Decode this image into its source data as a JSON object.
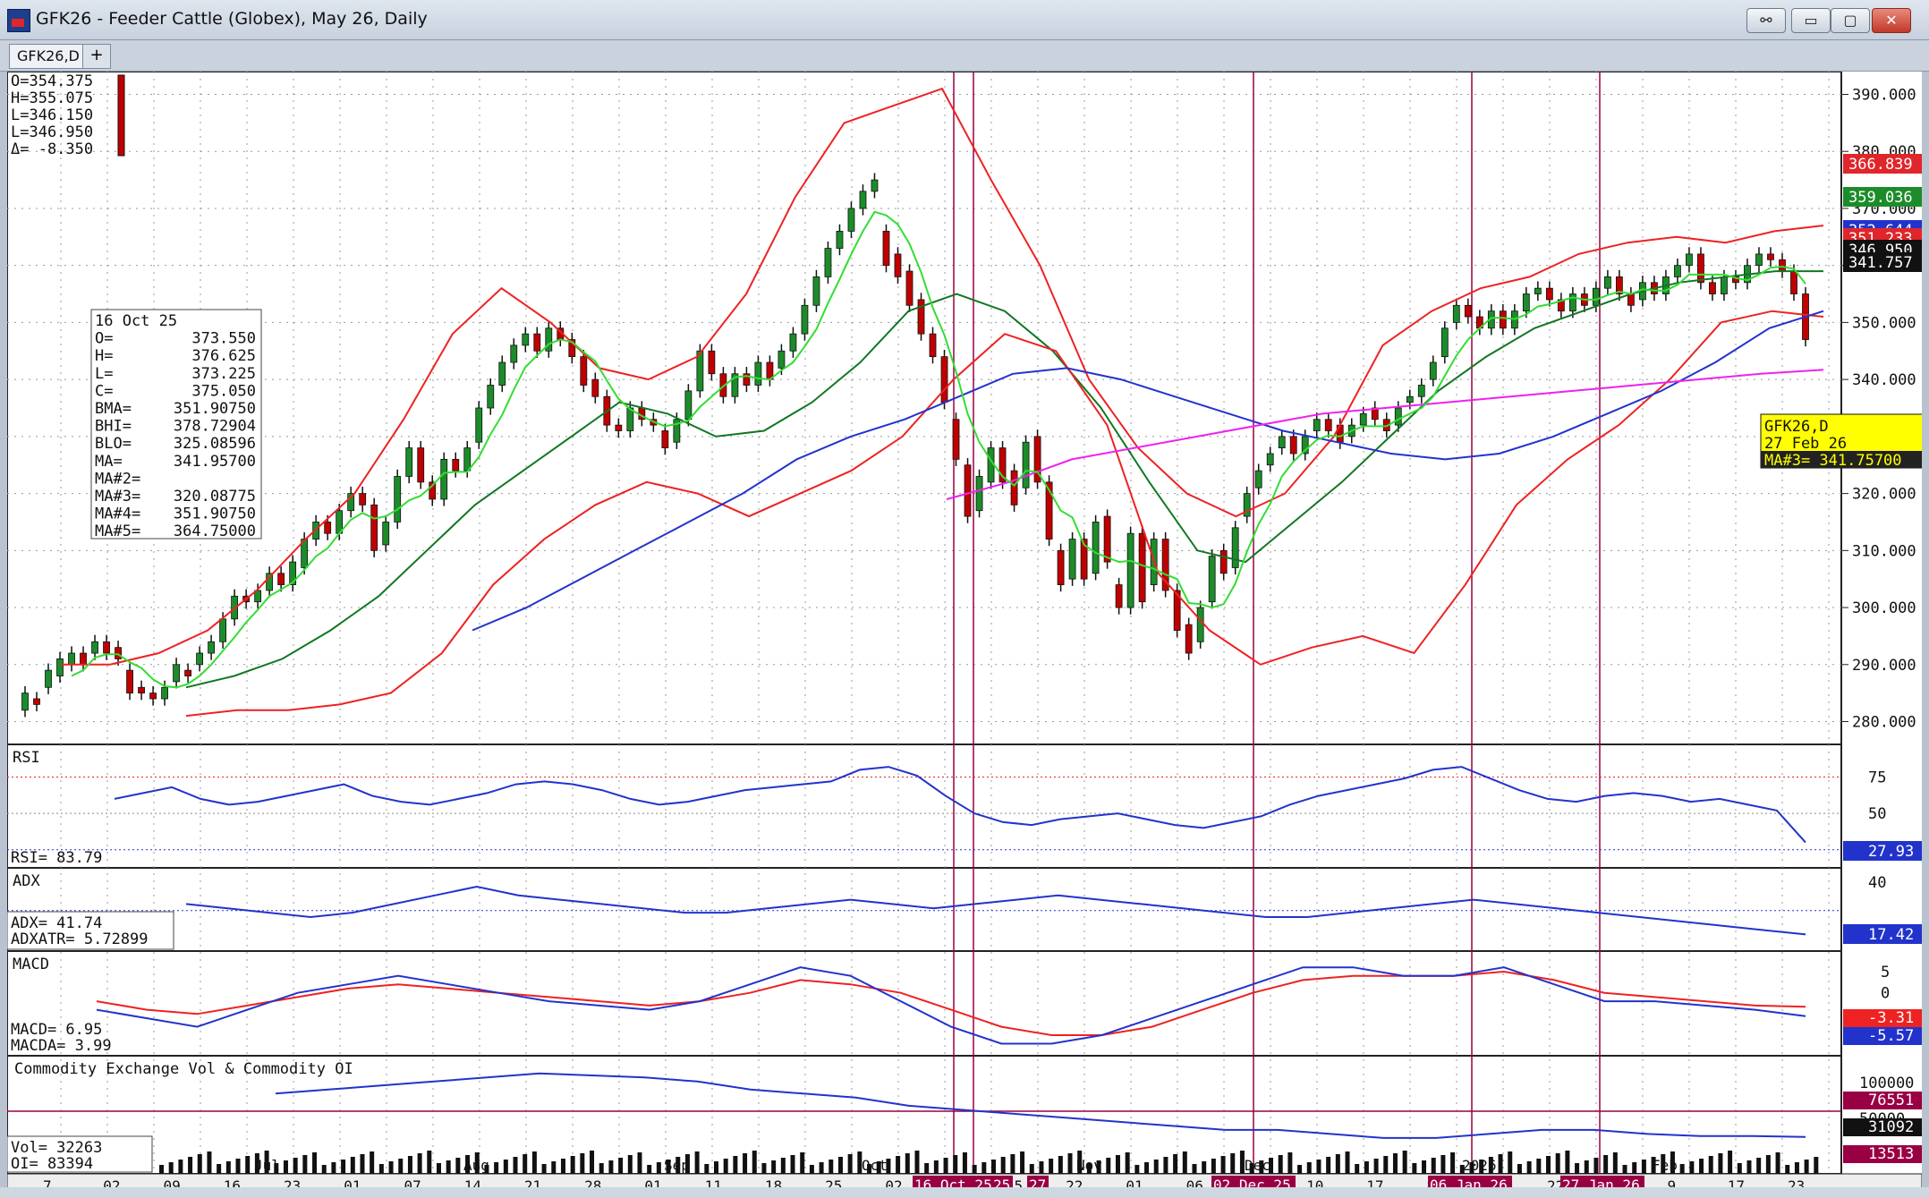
{
  "window": {
    "title": "GFK26 - Feeder Cattle (Globex), May 26, Daily",
    "tab_label": "GFK26,D",
    "tab_add": "+",
    "buttons": {
      "link": "⚯",
      "minimize": "▭",
      "maximize": "▢",
      "close": "✕"
    }
  },
  "chart_data": {
    "type": "line",
    "symbol": "GFK26,D",
    "date_label": "27 Feb 26",
    "price_axis": {
      "ylim": [
        276,
        394
      ],
      "ticks": [
        "390.000",
        "380.000",
        "370.000",
        "360.000",
        "350.000",
        "340.000",
        "330.000",
        "320.000",
        "310.000",
        "300.000",
        "290.000",
        "280.000"
      ]
    },
    "ohlc_box": {
      "O": "354.375",
      "H": "355.075",
      "L": "346.150",
      "L2": "346.950",
      "delta": "-8.350"
    },
    "cursor_box": [
      {
        "label": "16 Oct 25",
        "value": ""
      },
      {
        "label": "O=",
        "value": "373.550"
      },
      {
        "label": "H=",
        "value": "376.625"
      },
      {
        "label": "L=",
        "value": "373.225"
      },
      {
        "label": "C=",
        "value": "375.050"
      },
      {
        "label": "BMA=",
        "value": "351.90750"
      },
      {
        "label": "BHI=",
        "value": "378.72904"
      },
      {
        "label": "BLO=",
        "value": "325.08596"
      },
      {
        "label": "MA=",
        "value": "341.95700"
      },
      {
        "label": "MA#2=",
        "value": ""
      },
      {
        "label": "MA#3=",
        "value": "320.08775"
      },
      {
        "label": "MA#4=",
        "value": "351.90750"
      },
      {
        "label": "MA#5=",
        "value": "364.75000"
      }
    ],
    "info_box": {
      "line1": "GFK26,D",
      "line2": "27 Feb 26",
      "line3": "MA#3= 341.75700"
    },
    "value_tags": [
      {
        "value": "366.839",
        "color": "#e0262a"
      },
      {
        "value": "359.036",
        "color": "#1c8c2a"
      },
      {
        "value": "352.644",
        "color": "#2233cc"
      },
      {
        "value": "351.233",
        "color": "#e0262a"
      },
      {
        "value": "346.950",
        "color": "#111111"
      },
      {
        "value": "341.757",
        "color": "#111111"
      }
    ],
    "colors": {
      "up": "#1c8c2a",
      "down": "#c00000",
      "band": "#ee2222",
      "ma_fast": "#33dd33",
      "ma_mid": "#117722",
      "ma_slow": "#2233cc",
      "ma_long": "#ee22ee",
      "marker": "#990044"
    },
    "x_labels": [
      "7",
      "02",
      "09",
      "16",
      "23",
      "01",
      "07",
      "14",
      "21",
      "28",
      "01",
      "11",
      "18",
      "25",
      "02",
      "08",
      "15",
      "22",
      "01",
      "06",
      "03",
      "10",
      "17",
      "8",
      "15",
      "22",
      "2",
      "9",
      "17",
      "23"
    ],
    "month_labels": [
      "Jul",
      "Aug",
      "Sep",
      "Oct",
      "Nov",
      "Dec",
      "2026",
      "Feb"
    ],
    "marker_labels": [
      "16 Oct 25",
      "25",
      "27",
      "02 Dec 25",
      "06 Jan 26",
      "27 Jan 26"
    ],
    "candles": [
      [
        282,
        285
      ],
      [
        284,
        283
      ],
      [
        286,
        289
      ],
      [
        288,
        291
      ],
      [
        290,
        292
      ],
      [
        292,
        290
      ],
      [
        292,
        294
      ],
      [
        294,
        292
      ],
      [
        293,
        291
      ],
      [
        289,
        285
      ],
      [
        286,
        285
      ],
      [
        285,
        284
      ],
      [
        284,
        286
      ],
      [
        287,
        290
      ],
      [
        289,
        288
      ],
      [
        290,
        292
      ],
      [
        292,
        294
      ],
      [
        294,
        298
      ],
      [
        298,
        302
      ],
      [
        302,
        301
      ],
      [
        301,
        303
      ],
      [
        303,
        306
      ],
      [
        306,
        304
      ],
      [
        304,
        308
      ],
      [
        307,
        312
      ],
      [
        312,
        315
      ],
      [
        315,
        313
      ],
      [
        313,
        317
      ],
      [
        317,
        320
      ],
      [
        320,
        318
      ],
      [
        318,
        310
      ],
      [
        311,
        315
      ],
      [
        315,
        323
      ],
      [
        323,
        328
      ],
      [
        328,
        322
      ],
      [
        322,
        319
      ],
      [
        319,
        326
      ],
      [
        326,
        324
      ],
      [
        324,
        328
      ],
      [
        329,
        335
      ],
      [
        335,
        339
      ],
      [
        339,
        343
      ],
      [
        343,
        346
      ],
      [
        346,
        348
      ],
      [
        348,
        345
      ],
      [
        345,
        349
      ],
      [
        349,
        347
      ],
      [
        347,
        344
      ],
      [
        344,
        339
      ],
      [
        340,
        337
      ],
      [
        337,
        332
      ],
      [
        332,
        331
      ],
      [
        331,
        335
      ],
      [
        335,
        333
      ],
      [
        333,
        332
      ],
      [
        331,
        328
      ],
      [
        329,
        333
      ],
      [
        333,
        338
      ],
      [
        338,
        345
      ],
      [
        345,
        341
      ],
      [
        341,
        337
      ],
      [
        337,
        341
      ],
      [
        341,
        339
      ],
      [
        339,
        343
      ],
      [
        343,
        340
      ],
      [
        342,
        345
      ],
      [
        345,
        348
      ],
      [
        348,
        353
      ],
      [
        353,
        358
      ],
      [
        358,
        363
      ],
      [
        363,
        366
      ],
      [
        366,
        370
      ],
      [
        370,
        373
      ],
      [
        373,
        375
      ],
      [
        366,
        360
      ],
      [
        362,
        358
      ],
      [
        359,
        353
      ],
      [
        354,
        348
      ],
      [
        348,
        344
      ],
      [
        344,
        336
      ],
      [
        333,
        326
      ],
      [
        325,
        316
      ],
      [
        317,
        323
      ],
      [
        322,
        328
      ],
      [
        328,
        322
      ],
      [
        324,
        318
      ],
      [
        321,
        329
      ],
      [
        330,
        322
      ],
      [
        322,
        312
      ],
      [
        310,
        304
      ],
      [
        305,
        312
      ],
      [
        312,
        305
      ],
      [
        306,
        315
      ],
      [
        316,
        308
      ],
      [
        304,
        300
      ],
      [
        300,
        313
      ],
      [
        313,
        301
      ],
      [
        304,
        312
      ],
      [
        312,
        303
      ],
      [
        303,
        296
      ],
      [
        297,
        292
      ],
      [
        294,
        300
      ],
      [
        301,
        309
      ],
      [
        310,
        306
      ],
      [
        307,
        314
      ],
      [
        316,
        320
      ],
      [
        321,
        324
      ],
      [
        325,
        327
      ],
      [
        328,
        330
      ],
      [
        330,
        327
      ],
      [
        327,
        330
      ],
      [
        331,
        333
      ],
      [
        333,
        331
      ],
      [
        332,
        329
      ],
      [
        330,
        332
      ],
      [
        332,
        334
      ],
      [
        335,
        333
      ],
      [
        333,
        331
      ],
      [
        332,
        335
      ],
      [
        336,
        337
      ],
      [
        337,
        339
      ],
      [
        340,
        343
      ],
      [
        344,
        349
      ],
      [
        350,
        353
      ],
      [
        353,
        351
      ],
      [
        351,
        349
      ],
      [
        349,
        352
      ],
      [
        352,
        349
      ],
      [
        349,
        352
      ],
      [
        352,
        355
      ],
      [
        355,
        356
      ],
      [
        356,
        354
      ],
      [
        354,
        352
      ],
      [
        352,
        355
      ],
      [
        355,
        353
      ],
      [
        353,
        356
      ],
      [
        356,
        358
      ],
      [
        358,
        355
      ],
      [
        355,
        353
      ],
      [
        354,
        357
      ],
      [
        357,
        355
      ],
      [
        355,
        358
      ],
      [
        358,
        360
      ],
      [
        360,
        362
      ],
      [
        362,
        357
      ],
      [
        357,
        355
      ],
      [
        355,
        358
      ],
      [
        358,
        357
      ],
      [
        357,
        360
      ],
      [
        360,
        362
      ],
      [
        362,
        361
      ],
      [
        361,
        359
      ],
      [
        359,
        355
      ],
      [
        355,
        347
      ]
    ],
    "series": [
      {
        "name": "BHI",
        "values": [
          290,
          290,
          292,
          296,
          303,
          312,
          320,
          333,
          348,
          356,
          350,
          342,
          340,
          344,
          355,
          372,
          385,
          388,
          391,
          375,
          360,
          340,
          328,
          320,
          316,
          320,
          330,
          346,
          352,
          356,
          358,
          362,
          364,
          365,
          364,
          366,
          367
        ]
      },
      {
        "name": "BMA",
        "values": [
          286,
          288,
          291,
          296,
          302,
          310,
          318,
          324,
          330,
          336,
          334,
          330,
          331,
          336,
          343,
          352,
          355,
          352,
          345,
          335,
          322,
          310,
          308,
          315,
          322,
          330,
          338,
          344,
          349,
          352,
          355,
          357,
          358,
          359,
          359
        ]
      },
      {
        "name": "BLO",
        "values": [
          281,
          282,
          282,
          283,
          285,
          292,
          304,
          312,
          318,
          322,
          320,
          316,
          320,
          324,
          330,
          340,
          348,
          345,
          332,
          306,
          296,
          290,
          293,
          295,
          292,
          304,
          318,
          326,
          332,
          340,
          350,
          352,
          351
        ]
      },
      {
        "name": "MA_slow",
        "values": [
          296,
          300,
          305,
          310,
          315,
          320,
          326,
          330,
          333,
          337,
          341,
          342,
          340,
          337,
          334,
          331,
          329,
          327,
          326,
          327,
          330,
          334,
          338,
          343,
          349,
          352
        ]
      },
      {
        "name": "MA_long",
        "values": [
          319,
          322,
          326,
          328,
          330,
          332,
          334,
          335,
          336,
          337,
          338,
          339,
          340,
          341,
          341.7
        ]
      }
    ],
    "rsi": {
      "label": "RSI",
      "value_label": "RSI=",
      "value": "83.79",
      "last": "27.93",
      "ticks": [
        "75",
        "50"
      ],
      "values": [
        60,
        64,
        68,
        60,
        56,
        58,
        62,
        66,
        70,
        62,
        58,
        56,
        60,
        64,
        70,
        72,
        70,
        66,
        60,
        56,
        58,
        62,
        66,
        68,
        70,
        72,
        80,
        82,
        76,
        62,
        50,
        44,
        42,
        46,
        48,
        50,
        46,
        42,
        40,
        44,
        48,
        56,
        62,
        66,
        70,
        74,
        80,
        82,
        74,
        66,
        60,
        58,
        62,
        64,
        62,
        58,
        60,
        56,
        52,
        30
      ]
    },
    "adx": {
      "label": "ADX",
      "value_label": "ADX=",
      "value": "41.74",
      "atr_label": "ADXATR=",
      "atr_value": "5.72899",
      "last": "17.42",
      "ticks": [
        "40"
      ],
      "values": [
        30,
        28,
        26,
        24,
        26,
        30,
        34,
        38,
        34,
        32,
        30,
        28,
        26,
        26,
        28,
        30,
        32,
        30,
        28,
        30,
        32,
        34,
        32,
        30,
        28,
        26,
        24,
        24,
        26,
        28,
        30,
        32,
        30,
        28,
        26,
        24,
        22,
        20,
        18,
        16
      ]
    },
    "macd": {
      "label": "MACD",
      "value_label": "MACD=",
      "value": "6.95",
      "a_label": "MACDA=",
      "a_value": "3.99",
      "last_a": "-3.31",
      "last": "-5.57",
      "ticks": [
        "5",
        "0",
        "-10"
      ],
      "macd": [
        -4,
        -6,
        -8,
        -4,
        0,
        2,
        4,
        2,
        0,
        -2,
        -3,
        -4,
        -2,
        2,
        6,
        4,
        -2,
        -8,
        -12,
        -12,
        -10,
        -6,
        -2,
        2,
        6,
        6,
        4,
        4,
        6,
        2,
        -2,
        -2,
        -3,
        -4,
        -5.5
      ],
      "signal": [
        -2,
        -4,
        -5,
        -3,
        -1,
        1,
        2,
        1,
        0,
        -1,
        -2,
        -3,
        -2,
        0,
        3,
        2,
        0,
        -4,
        -8,
        -10,
        -10,
        -8,
        -4,
        0,
        3,
        4,
        4,
        4,
        5,
        3,
        0,
        -1,
        -2,
        -3,
        -3.3
      ]
    },
    "volume": {
      "label": "Commodity Exchange Vol & Commodity OI",
      "vol_label": "Vol=",
      "vol_value": "32263",
      "oi_label": "OI=",
      "oi_value": "83394",
      "ticks": [
        "100000",
        "50000"
      ],
      "tags": [
        "76551",
        "31092",
        "13513"
      ],
      "oi_values": [
        98000,
        100000,
        102000,
        104000,
        106000,
        108000,
        107000,
        106000,
        104000,
        100000,
        98000,
        96000,
        92000,
        90000,
        88000,
        86000,
        84000,
        82000,
        80000,
        80000,
        78000,
        76000,
        76000,
        78000,
        80000,
        80000,
        78000,
        77000,
        77000,
        76551
      ]
    }
  }
}
